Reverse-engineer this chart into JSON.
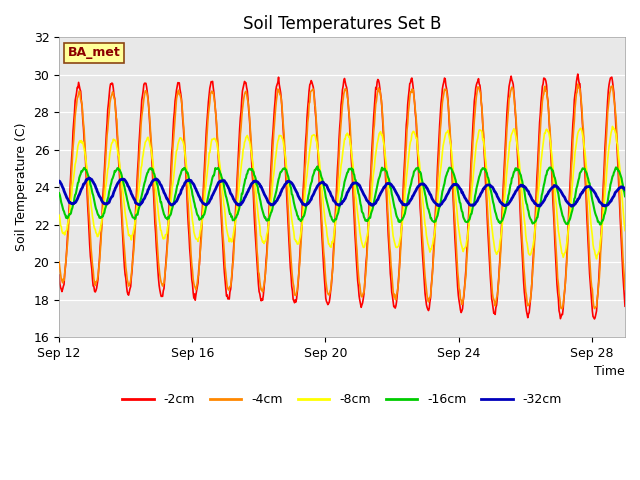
{
  "title": "Soil Temperatures Set B",
  "xlabel": "Time",
  "ylabel": "Soil Temperature (C)",
  "ylim": [
    16,
    32
  ],
  "yticks": [
    16,
    18,
    20,
    22,
    24,
    26,
    28,
    30,
    32
  ],
  "n_days": 17,
  "xtick_positions": [
    0,
    4,
    8,
    12,
    16
  ],
  "xtick_labels": [
    "Sep 12",
    "Sep 16",
    "Sep 20",
    "Sep 24",
    "Sep 28"
  ],
  "annotation_text": "BA_met",
  "series_colors": {
    "-2cm": "#ff0000",
    "-4cm": "#ff8800",
    "-8cm": "#ffff00",
    "-16cm": "#00cc00",
    "-32cm": "#0000bb"
  },
  "series_linewidths": {
    "-2cm": 1.2,
    "-4cm": 1.2,
    "-8cm": 1.2,
    "-16cm": 1.5,
    "-32cm": 2.0
  },
  "background_color": "#e8e8e8",
  "fig_background": "#ffffff"
}
